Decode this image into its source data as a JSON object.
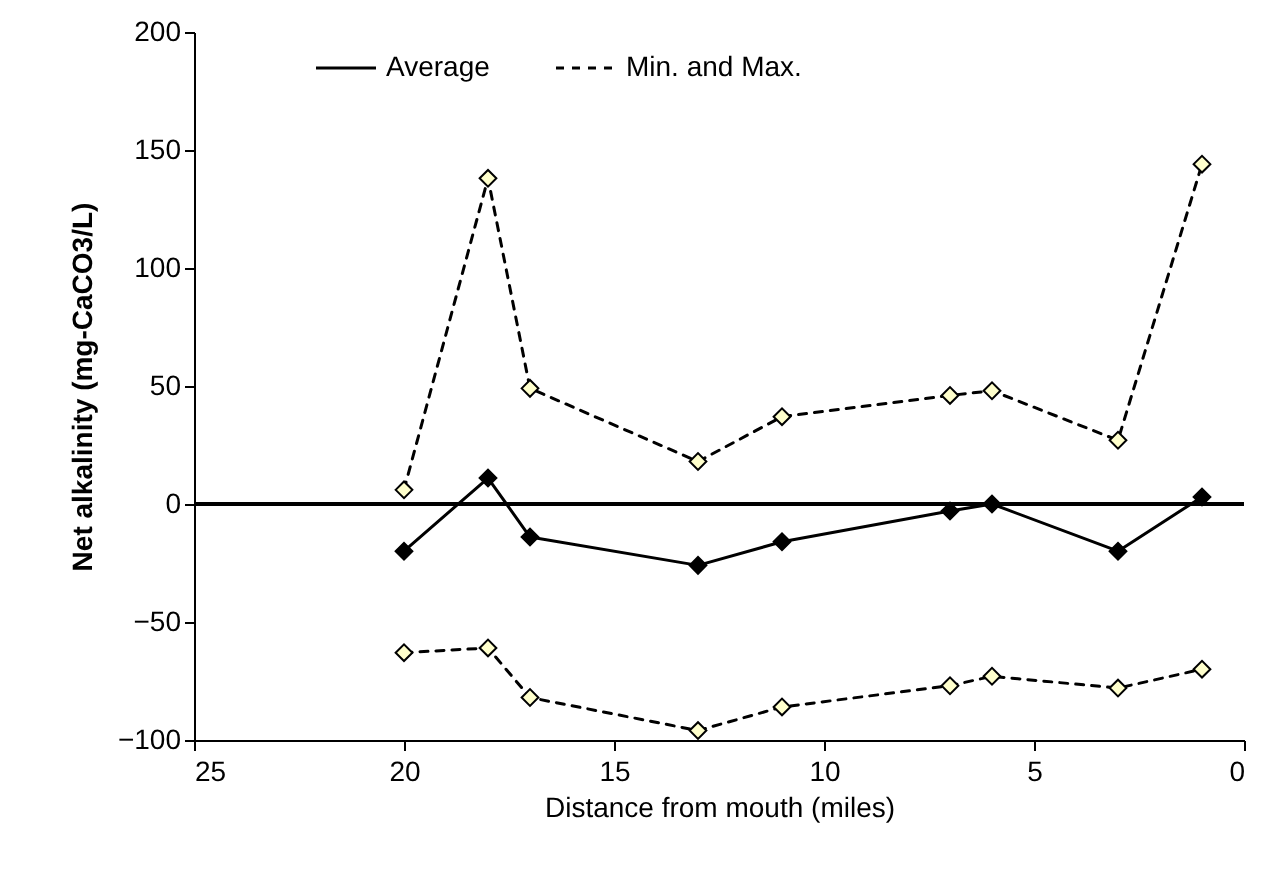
{
  "chart_data": {
    "type": "line",
    "xlabel": "Distance from mouth (miles)",
    "ylabel": "Net alkalinity (mg-CaCO3/L)",
    "x": [
      20,
      18,
      17,
      13,
      11,
      7,
      6,
      3,
      1
    ],
    "series": [
      {
        "name": "Average",
        "color": "#000000",
        "line_style": "solid",
        "values": [
          -20,
          11,
          -14,
          -26,
          -16,
          -3,
          0,
          -20,
          3
        ]
      },
      {
        "name": "Min. and Max.",
        "color": "#ffffcc",
        "line_style": "dashed",
        "values": [
          6,
          138,
          49,
          18,
          37,
          46,
          48,
          27,
          144
        ]
      },
      {
        "color": "#ffffcc",
        "line_style": "dashed",
        "values": [
          -63,
          -61,
          -82,
          -96,
          -86,
          -77,
          -73,
          -78,
          -70
        ]
      }
    ],
    "xlim": [
      25,
      0
    ],
    "xticks": [
      25,
      20,
      15,
      10,
      5,
      0
    ],
    "ylim": [
      -100,
      200
    ],
    "yticks": [
      -100,
      -50,
      0,
      50,
      100,
      150,
      200
    ],
    "ref_lines": [
      {
        "axis": "y",
        "value": 0,
        "color": "#000000",
        "line_style": "solid"
      }
    ],
    "marker": "diamond",
    "grid": false,
    "legend": "top"
  }
}
